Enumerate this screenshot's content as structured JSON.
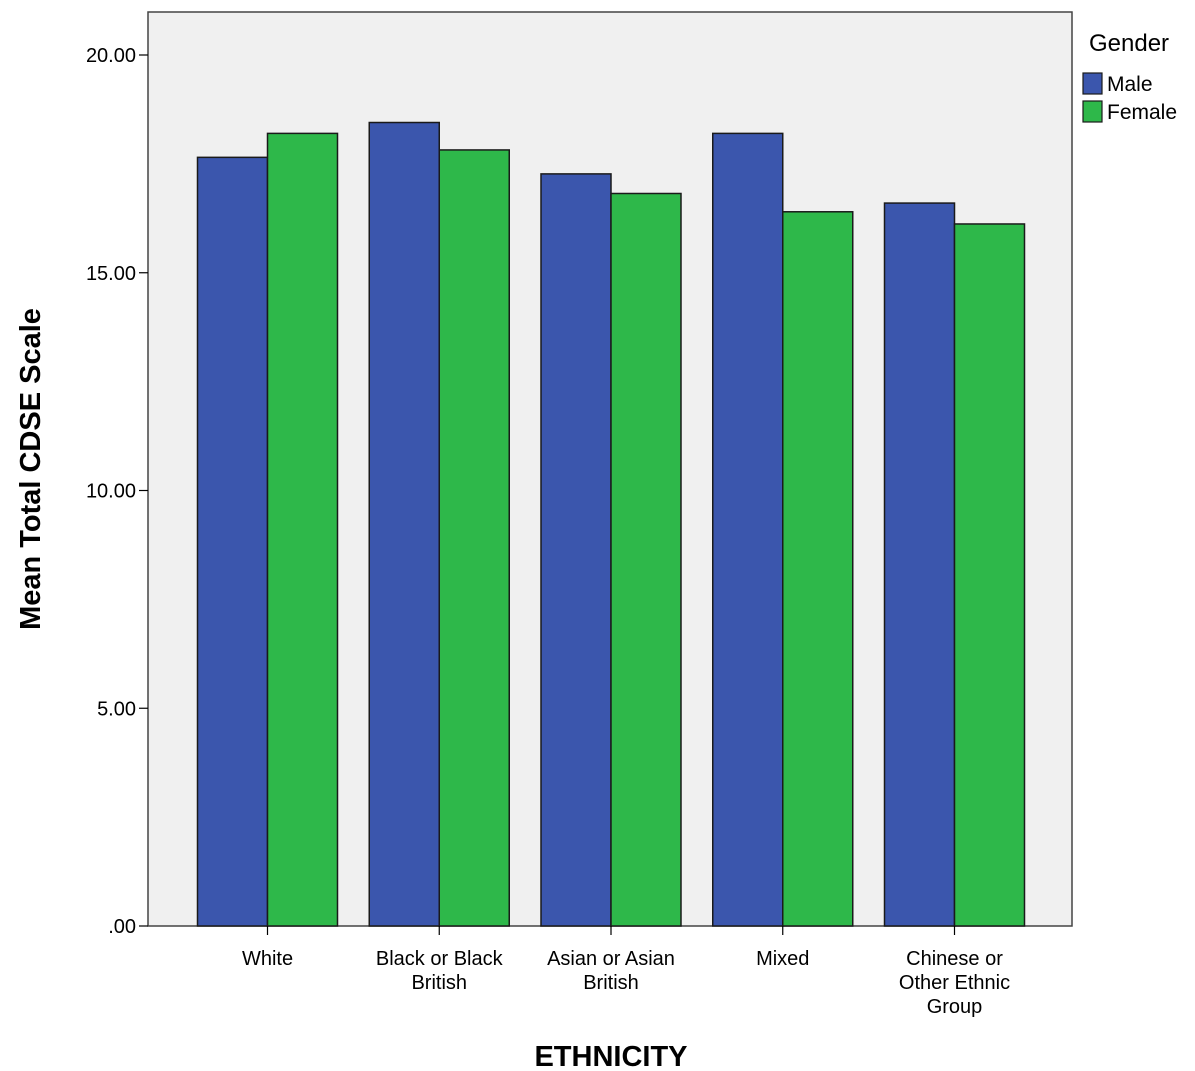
{
  "chart_data": {
    "type": "bar",
    "title": "",
    "xlabel": "ETHNICITY",
    "ylabel": "Mean Total CDSE Scale",
    "categories": [
      [
        "White"
      ],
      [
        "Black or Black",
        "British"
      ],
      [
        "Asian or Asian",
        "British"
      ],
      [
        "Mixed"
      ],
      [
        "Chinese or",
        "Other Ethnic",
        "Group"
      ]
    ],
    "series": [
      {
        "name": "Male",
        "color": "#3b56ad",
        "values": [
          17.65,
          18.45,
          17.27,
          18.2,
          16.6
        ]
      },
      {
        "name": "Female",
        "color": "#2eb84a",
        "values": [
          18.2,
          17.82,
          16.82,
          16.4,
          16.12
        ]
      }
    ],
    "ylim": [
      0,
      20
    ],
    "yticks": [
      0,
      5,
      10,
      15,
      20
    ],
    "ytick_labels": [
      ".00",
      "5.00",
      "10.00",
      "15.00",
      "20.00"
    ],
    "legend": {
      "title": "Gender",
      "position": "right"
    },
    "plot_background": "#f0f0f0",
    "grid": false
  }
}
